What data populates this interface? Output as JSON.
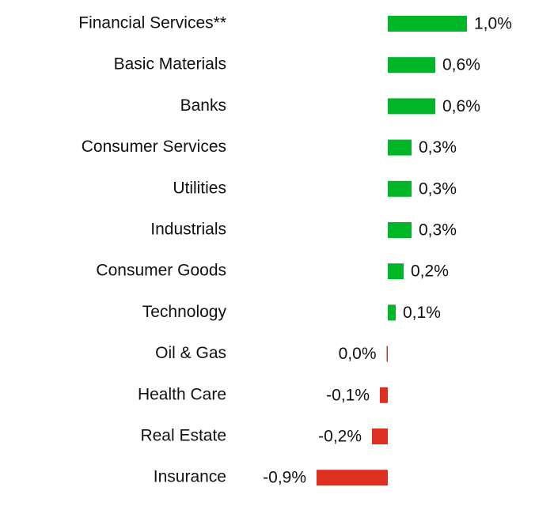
{
  "chart_data": {
    "type": "bar",
    "orientation": "horizontal",
    "categories": [
      "Financial Services**",
      "Basic Materials",
      "Banks",
      "Consumer Services",
      "Utilities",
      "Industrials",
      "Consumer Goods",
      "Technology",
      "Oil & Gas",
      "Health Care",
      "Real Estate",
      "Insurance"
    ],
    "values": [
      1.0,
      0.6,
      0.6,
      0.3,
      0.3,
      0.3,
      0.2,
      0.1,
      0.0,
      -0.1,
      -0.2,
      -0.9
    ],
    "value_labels": [
      "1,0%",
      "0,6%",
      "0,6%",
      "0,3%",
      "0,3%",
      "0,3%",
      "0,2%",
      "0,1%",
      "0,0%",
      "-0,1%",
      "-0,2%",
      "-0,9%"
    ],
    "colors": {
      "positive": "#00b526",
      "negative": "#dd3020"
    },
    "grid": false,
    "legend": "none",
    "title": "",
    "xlabel": "",
    "ylabel": ""
  }
}
